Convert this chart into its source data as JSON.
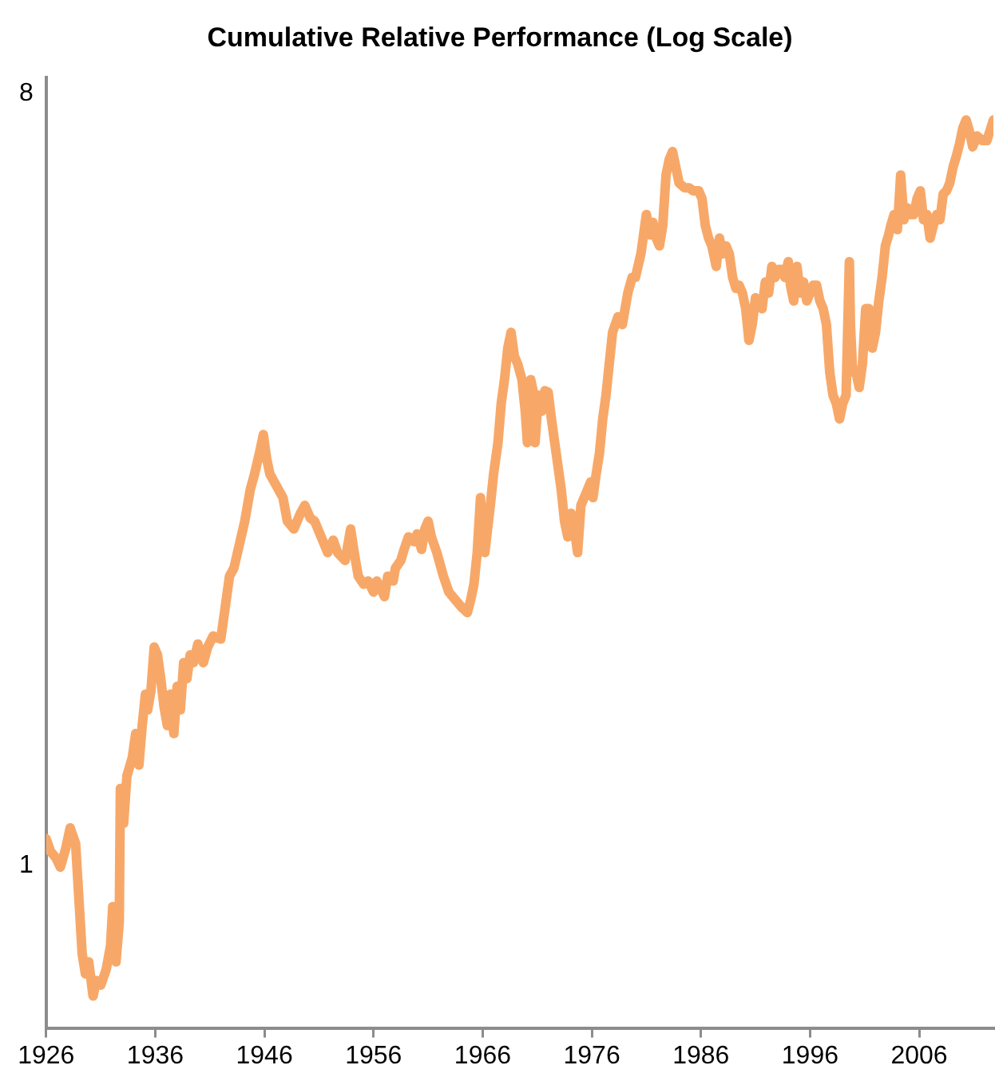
{
  "chart_data": {
    "type": "line",
    "title": "Cumulative Relative Performance (Log Scale)",
    "log": "y",
    "grid": false,
    "legend": false,
    "marker": "none",
    "line_style": "solid",
    "xlim": [
      1926,
      2012.8
    ],
    "xticks": [
      1926,
      1936,
      1946,
      1956,
      1966,
      1976,
      1986,
      1996,
      2006
    ],
    "ylim": [
      0.646,
      8.35
    ],
    "yticks": [
      1,
      8
    ],
    "series": [
      {
        "color": "#f7a868",
        "x": [
          1926.0,
          1926.4,
          1926.9,
          1927.3,
          1927.8,
          1928.2,
          1928.7,
          1929.0,
          1929.3,
          1929.6,
          1929.9,
          1930.3,
          1930.6,
          1931.0,
          1931.5,
          1931.9,
          1932.1,
          1932.4,
          1932.7,
          1932.8,
          1933.1,
          1933.4,
          1933.9,
          1934.2,
          1934.5,
          1934.8,
          1935.1,
          1935.3,
          1935.6,
          1935.9,
          1936.2,
          1936.5,
          1936.8,
          1937.1,
          1937.4,
          1937.7,
          1938.0,
          1938.3,
          1938.6,
          1938.9,
          1939.2,
          1939.5,
          1939.9,
          1940.4,
          1940.8,
          1941.3,
          1942.0,
          1942.3,
          1942.8,
          1943.2,
          1943.7,
          1944.2,
          1944.7,
          1945.1,
          1945.6,
          1945.9,
          1946.2,
          1946.5,
          1946.9,
          1947.7,
          1948.1,
          1948.7,
          1949.3,
          1949.7,
          1950.2,
          1950.6,
          1951.2,
          1951.8,
          1952.3,
          1952.7,
          1953.4,
          1953.9,
          1954.3,
          1954.6,
          1955.1,
          1955.5,
          1956.0,
          1956.3,
          1956.6,
          1957.0,
          1957.3,
          1957.8,
          1958.0,
          1958.5,
          1958.8,
          1959.2,
          1959.7,
          1960.0,
          1960.4,
          1960.7,
          1961.0,
          1961.3,
          1961.8,
          1962.4,
          1962.9,
          1963.5,
          1964.1,
          1964.6,
          1964.9,
          1965.2,
          1965.5,
          1965.8,
          1965.9,
          1966.2,
          1966.7,
          1967.0,
          1967.4,
          1967.7,
          1968.0,
          1968.3,
          1968.6,
          1968.9,
          1969.2,
          1969.6,
          1969.9,
          1970.1,
          1970.4,
          1970.7,
          1970.8,
          1971.1,
          1971.4,
          1971.7,
          1972.0,
          1972.3,
          1972.6,
          1972.9,
          1973.2,
          1973.5,
          1973.8,
          1974.1,
          1974.4,
          1974.7,
          1975.0,
          1975.3,
          1975.6,
          1975.9,
          1976.1,
          1976.4,
          1976.7,
          1977.0,
          1977.3,
          1977.6,
          1977.9,
          1978.4,
          1978.8,
          1979.3,
          1979.7,
          1980.0,
          1980.5,
          1980.7,
          1981.0,
          1981.3,
          1981.6,
          1981.9,
          1982.2,
          1982.5,
          1982.8,
          1983.1,
          1983.4,
          1983.7,
          1984.0,
          1984.5,
          1984.9,
          1985.3,
          1985.8,
          1986.1,
          1986.4,
          1986.7,
          1987.0,
          1987.4,
          1987.7,
          1988.0,
          1988.3,
          1988.6,
          1988.9,
          1989.2,
          1989.5,
          1989.8,
          1990.1,
          1990.4,
          1990.7,
          1991.0,
          1991.3,
          1991.6,
          1991.9,
          1992.2,
          1992.5,
          1992.8,
          1993.1,
          1993.4,
          1993.7,
          1994.0,
          1994.2,
          1994.5,
          1994.8,
          1995.1,
          1995.4,
          1995.7,
          1996.0,
          1996.3,
          1996.6,
          1996.9,
          1997.2,
          1997.5,
          1997.8,
          1998.1,
          1998.4,
          1998.7,
          1999.0,
          1999.3,
          1999.6,
          1999.7,
          1999.9,
          2000.2,
          2000.5,
          2000.8,
          2001.1,
          2001.4,
          2001.7,
          2002.0,
          2002.3,
          2002.6,
          2002.9,
          2003.2,
          2003.4,
          2003.7,
          2004.0,
          2004.3,
          2004.6,
          2004.9,
          2005.2,
          2005.5,
          2005.8,
          2006.1,
          2006.4,
          2006.7,
          2007.0,
          2007.3,
          2007.6,
          2007.9,
          2008.2,
          2008.5,
          2008.8,
          2009.1,
          2009.4,
          2009.7,
          2010.0,
          2010.3,
          2010.6,
          2010.9,
          2011.3,
          2011.8,
          2012.2,
          2012.8
        ],
        "values": [
          1.075,
          1.039,
          1.021,
          0.996,
          1.048,
          1.107,
          1.061,
          0.915,
          0.789,
          0.747,
          0.772,
          0.704,
          0.734,
          0.725,
          0.756,
          0.806,
          0.896,
          0.772,
          0.859,
          1.231,
          1.121,
          1.273,
          1.339,
          1.427,
          1.311,
          1.458,
          1.587,
          1.521,
          1.6,
          1.801,
          1.764,
          1.655,
          1.534,
          1.458,
          1.587,
          1.427,
          1.62,
          1.521,
          1.727,
          1.655,
          1.764,
          1.727,
          1.816,
          1.727,
          1.801,
          1.856,
          1.84,
          1.96,
          2.18,
          2.227,
          2.372,
          2.528,
          2.751,
          2.87,
          3.058,
          3.191,
          2.994,
          2.87,
          2.81,
          2.693,
          2.528,
          2.475,
          2.582,
          2.637,
          2.549,
          2.528,
          2.423,
          2.323,
          2.402,
          2.323,
          2.274,
          2.475,
          2.293,
          2.18,
          2.133,
          2.152,
          2.089,
          2.152,
          2.116,
          2.063,
          2.18,
          2.152,
          2.227,
          2.274,
          2.343,
          2.423,
          2.392,
          2.443,
          2.343,
          2.475,
          2.528,
          2.423,
          2.323,
          2.18,
          2.089,
          2.045,
          2.003,
          1.977,
          2.045,
          2.133,
          2.323,
          2.693,
          2.549,
          2.323,
          2.637,
          2.87,
          3.123,
          3.472,
          3.701,
          4.028,
          4.202,
          3.943,
          3.861,
          3.701,
          3.399,
          3.123,
          3.701,
          3.548,
          3.123,
          3.548,
          3.399,
          3.592,
          3.577,
          3.329,
          3.123,
          2.932,
          2.751,
          2.528,
          2.423,
          2.582,
          2.475,
          2.323,
          2.637,
          2.693,
          2.751,
          2.81,
          2.693,
          2.87,
          3.033,
          3.329,
          3.548,
          3.861,
          4.202,
          4.383,
          4.291,
          4.672,
          4.873,
          4.873,
          5.191,
          5.416,
          5.771,
          5.463,
          5.651,
          5.416,
          5.303,
          5.603,
          6.417,
          6.695,
          6.836,
          6.553,
          6.281,
          6.202,
          6.202,
          6.15,
          6.15,
          6.022,
          5.603,
          5.416,
          5.303,
          5.019,
          5.416,
          5.191,
          5.303,
          5.191,
          4.873,
          4.731,
          4.77,
          4.672,
          4.479,
          4.113,
          4.291,
          4.612,
          4.573,
          4.479,
          4.811,
          4.672,
          5.019,
          4.873,
          4.977,
          4.977,
          4.873,
          5.084,
          4.77,
          4.573,
          5.019,
          4.672,
          4.811,
          4.573,
          4.672,
          4.77,
          4.77,
          4.573,
          4.479,
          4.291,
          3.779,
          3.548,
          3.472,
          3.329,
          3.472,
          3.548,
          5.084,
          4.291,
          3.779,
          3.779,
          3.623,
          3.861,
          4.479,
          4.479,
          4.028,
          4.202,
          4.573,
          4.873,
          5.303,
          5.463,
          5.603,
          5.771,
          5.541,
          6.417,
          5.69,
          5.877,
          5.771,
          5.771,
          6.022,
          6.15,
          5.69,
          5.771,
          5.416,
          5.603,
          5.771,
          5.69,
          6.097,
          6.15,
          6.281,
          6.553,
          6.751,
          6.983,
          7.285,
          7.443,
          7.225,
          6.925,
          7.131,
          7.042,
          7.042,
          7.443
        ]
      }
    ]
  }
}
